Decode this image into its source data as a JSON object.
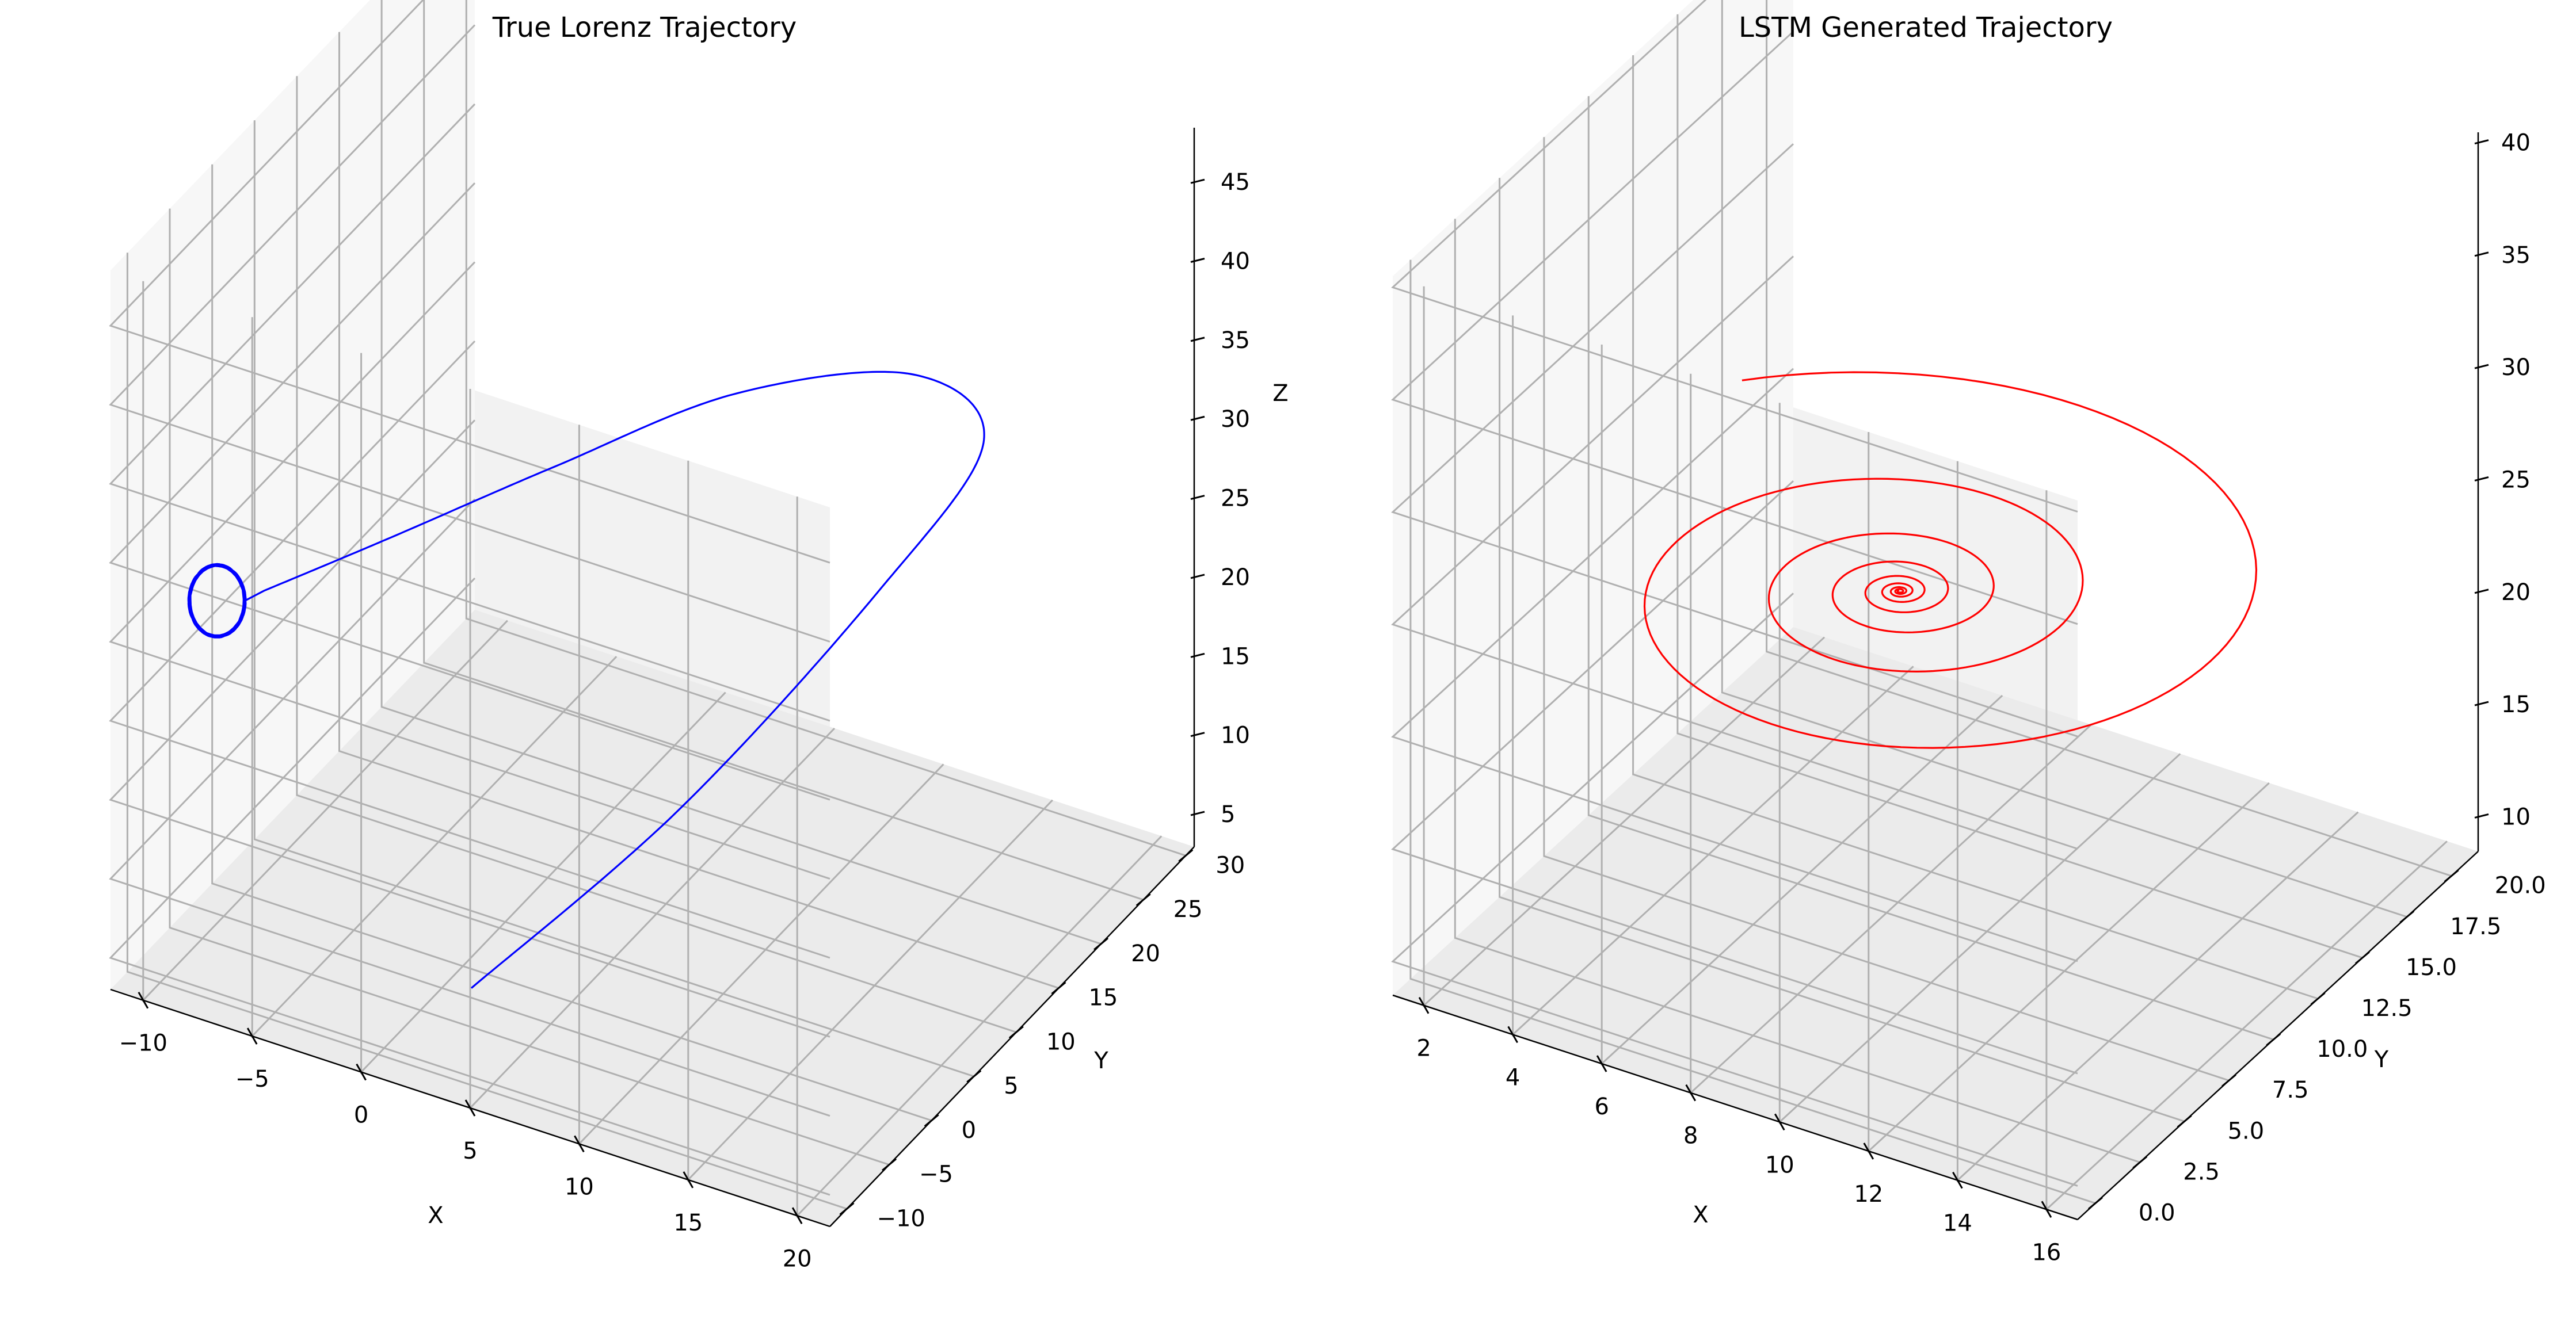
{
  "figure": {
    "background": "#ffffff",
    "pane_colors": [
      "#f2f2f2",
      "#f7f7f7",
      "#ebebeb"
    ],
    "grid_color": "#b0b0b0"
  },
  "chart_data": [
    {
      "type": "line",
      "projection": "3d",
      "title": "True Lorenz Trajectory",
      "xlabel": "X",
      "ylabel": "Y",
      "zlabel": "Z",
      "color": "#0000ff",
      "grid": true,
      "xlim": [
        -11.5,
        21.5
      ],
      "ylim": [
        -12,
        31
      ],
      "zlim": [
        3,
        48.5
      ],
      "xticks": [
        -10,
        -5,
        0,
        5,
        10,
        15,
        20
      ],
      "yticks": [
        -10,
        -5,
        0,
        5,
        10,
        15,
        20,
        25,
        30
      ],
      "zticks": [
        5,
        10,
        15,
        20,
        25,
        30,
        35,
        40,
        45
      ],
      "start": {
        "x": 0,
        "y": 1,
        "z": 1.05
      },
      "end": {
        "x": -8.5,
        "y": -8.5,
        "z": 27
      },
      "path_points": [
        {
          "x": 0.0,
          "y": 1.0,
          "z": 1.05
        },
        {
          "x": 6.0,
          "y": 10.0,
          "z": 10.0
        },
        {
          "x": 12.0,
          "y": 18.0,
          "z": 22.0
        },
        {
          "x": 16.5,
          "y": 19.0,
          "z": 33.0
        },
        {
          "x": 16.0,
          "y": 12.0,
          "z": 41.0
        },
        {
          "x": 11.0,
          "y": 4.0,
          "z": 42.0
        },
        {
          "x": 5.0,
          "y": -2.0,
          "z": 38.0
        },
        {
          "x": -1.0,
          "y": -6.0,
          "z": 33.0
        },
        {
          "x": -6.0,
          "y": -8.0,
          "z": 28.5
        }
      ],
      "final_orbit": {
        "center": {
          "x": -8.5,
          "y": -8.5,
          "z": 27
        },
        "radius": 1.0,
        "turns": 6
      }
    },
    {
      "type": "line",
      "projection": "3d",
      "title": "LSTM Generated Trajectory",
      "xlabel": "X",
      "ylabel": "Y",
      "zlabel": "Z",
      "color": "#ff0000",
      "grid": true,
      "xlim": [
        1.3,
        16.7
      ],
      "ylim": [
        -1,
        21.5
      ],
      "zlim": [
        8.5,
        40.5
      ],
      "xticks": [
        2,
        4,
        6,
        8,
        10,
        12,
        14,
        16
      ],
      "yticks": [
        0.0,
        2.5,
        5.0,
        7.5,
        10.0,
        12.5,
        15.0,
        17.5,
        20.0
      ],
      "ytick_labels": [
        "0.0",
        "2.5",
        "5.0",
        "7.5",
        "10.0",
        "12.5",
        "15.0",
        "17.5",
        "20.0"
      ],
      "zticks": [
        10,
        15,
        20,
        25,
        30,
        35,
        40
      ],
      "spiral": {
        "center": {
          "x": 8.7,
          "y": 9.0,
          "z": 24.0
        },
        "start_radius": 7.2,
        "turns": 8,
        "decay": 0.92
      }
    }
  ]
}
